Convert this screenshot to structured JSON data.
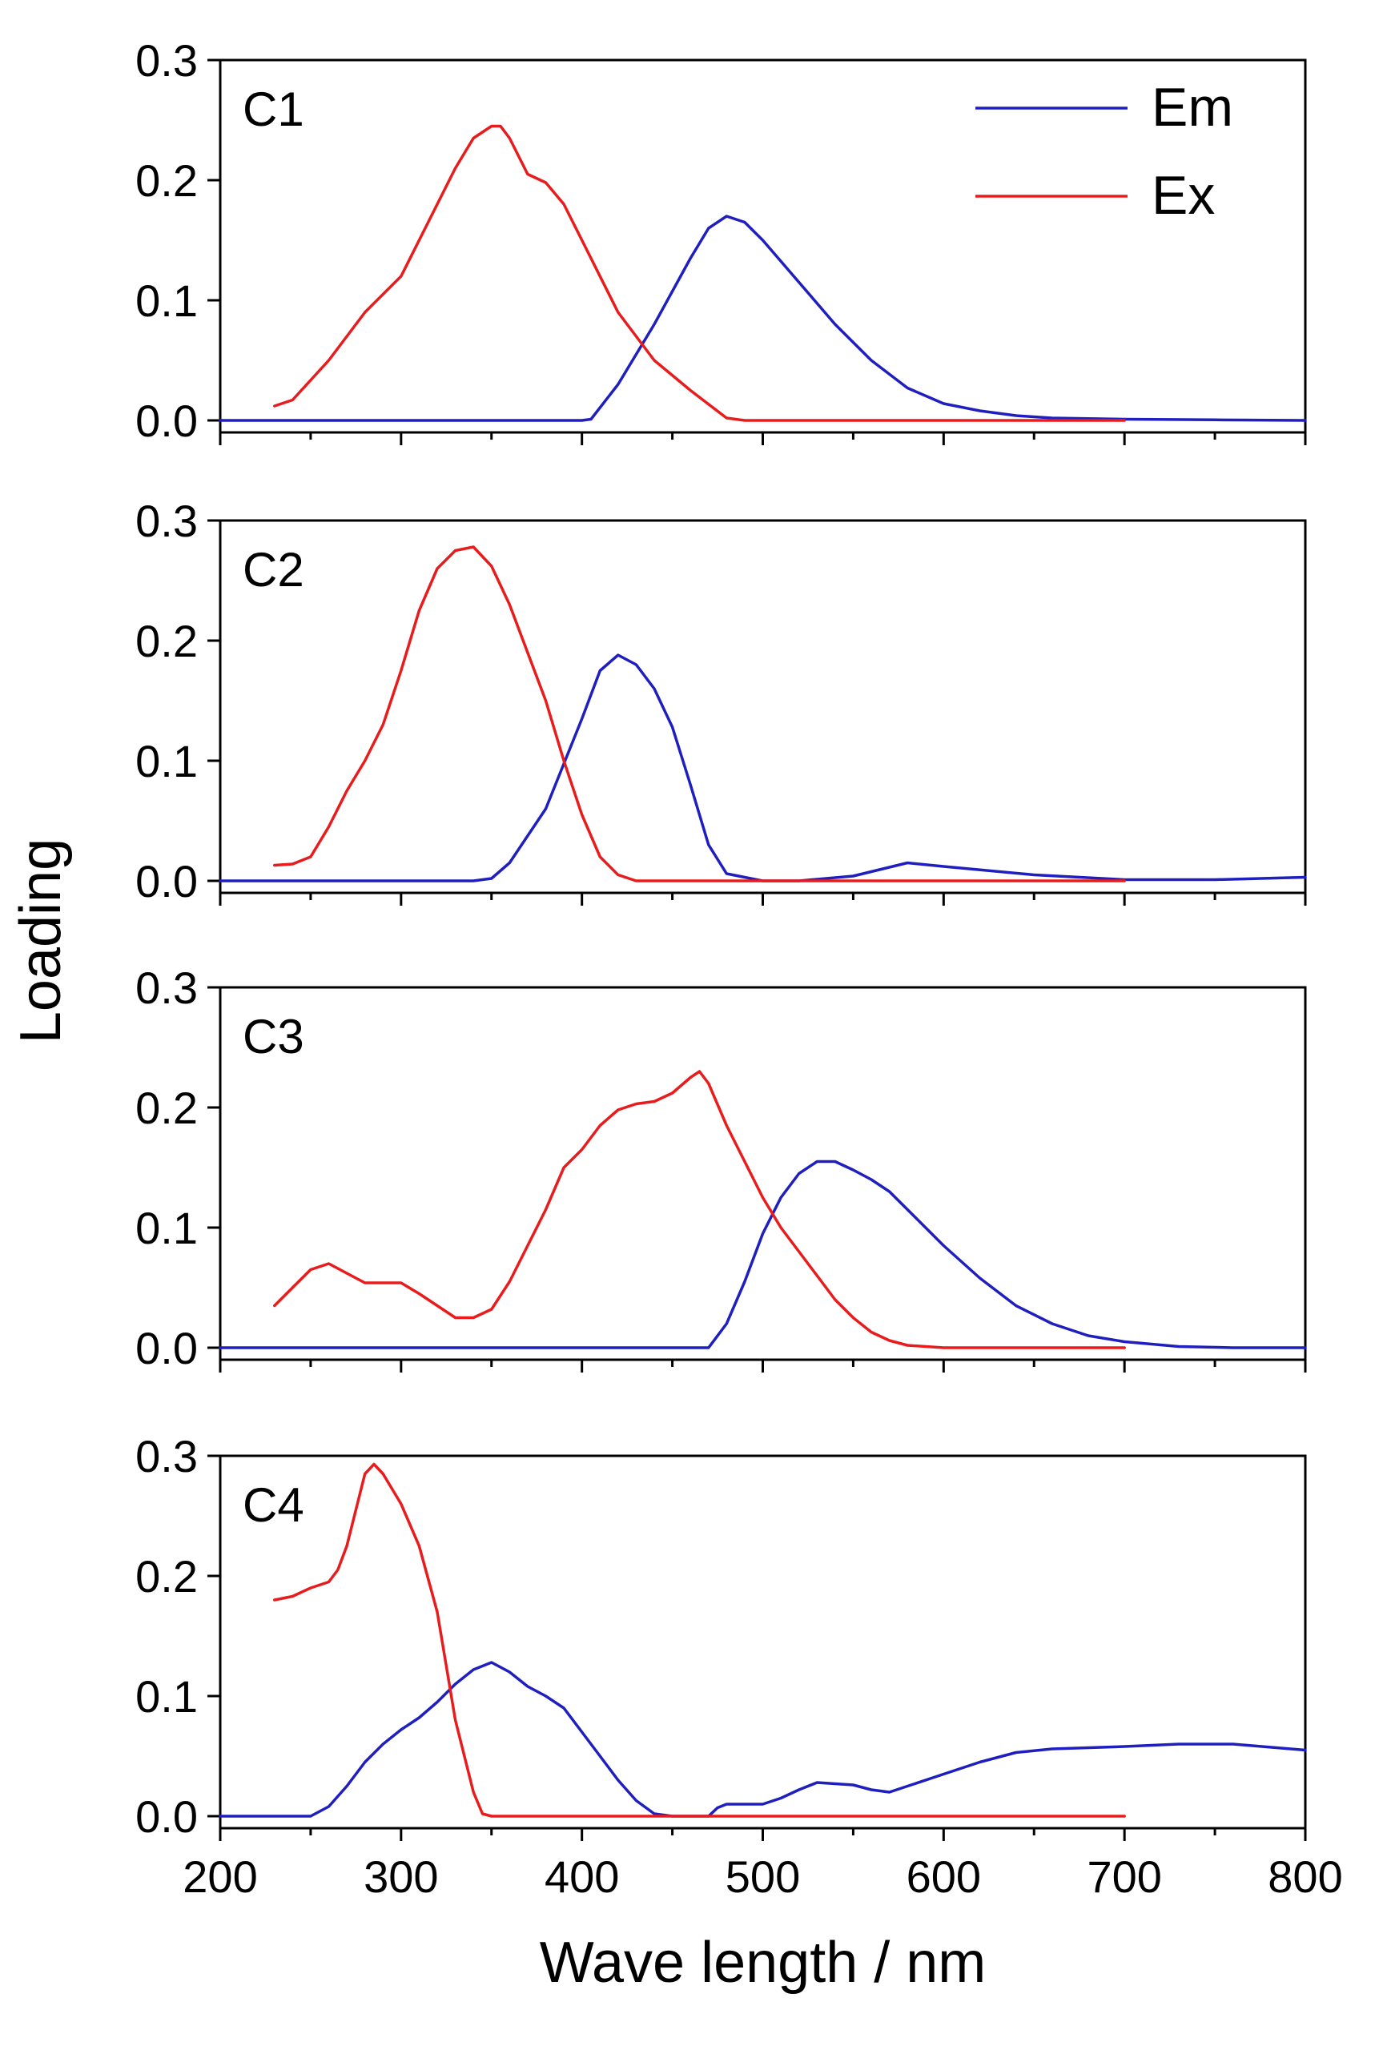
{
  "chart_data": {
    "type": "line",
    "xlabel": "Wave length / nm",
    "ylabel": "Loading",
    "xlim": [
      200,
      800
    ],
    "xticks": [
      200,
      300,
      400,
      500,
      600,
      700,
      800
    ],
    "xtick_labels": [
      "200",
      "300",
      "400",
      "500",
      "600",
      "700",
      "800"
    ],
    "ylim": [
      -0.01,
      0.3
    ],
    "yticks": [
      0.0,
      0.1,
      0.2,
      0.3
    ],
    "ytick_labels": [
      "0.0",
      "0.1",
      "0.2",
      "0.3"
    ],
    "legend": {
      "placement": "top-right of first panel",
      "entries": [
        {
          "name": "Em",
          "color": "#1f1fbf"
        },
        {
          "name": "Ex",
          "color": "#e81c1c"
        }
      ]
    },
    "colors": {
      "em": "#1f1fbf",
      "ex": "#e81c1c"
    },
    "panels": [
      {
        "label": "C1",
        "series": [
          {
            "name": "Em",
            "x": [
              200,
              250,
              300,
              350,
              400,
              405,
              420,
              440,
              460,
              470,
              480,
              490,
              500,
              520,
              540,
              560,
              580,
              600,
              620,
              640,
              660,
              700,
              750,
              800
            ],
            "y": [
              0,
              0,
              0,
              0,
              0,
              0.001,
              0.03,
              0.08,
              0.135,
              0.16,
              0.17,
              0.165,
              0.15,
              0.115,
              0.08,
              0.05,
              0.027,
              0.014,
              0.008,
              0.004,
              0.002,
              0.001,
              0.0005,
              0
            ]
          },
          {
            "name": "Ex",
            "x": [
              230,
              240,
              260,
              280,
              300,
              310,
              320,
              330,
              340,
              350,
              355,
              360,
              370,
              380,
              390,
              400,
              420,
              440,
              460,
              480,
              490,
              500,
              550,
              600,
              650,
              700
            ],
            "y": [
              0.012,
              0.017,
              0.05,
              0.09,
              0.12,
              0.15,
              0.18,
              0.21,
              0.235,
              0.245,
              0.245,
              0.235,
              0.205,
              0.198,
              0.18,
              0.15,
              0.09,
              0.05,
              0.025,
              0.002,
              0,
              0,
              0,
              0,
              0,
              0
            ]
          }
        ]
      },
      {
        "label": "C2",
        "series": [
          {
            "name": "Em",
            "x": [
              200,
              250,
              300,
              340,
              350,
              360,
              380,
              400,
              410,
              420,
              430,
              440,
              450,
              460,
              470,
              480,
              500,
              520,
              550,
              580,
              600,
              650,
              700,
              750,
              800
            ],
            "y": [
              0,
              0,
              0,
              0,
              0.002,
              0.015,
              0.06,
              0.135,
              0.175,
              0.188,
              0.18,
              0.16,
              0.128,
              0.08,
              0.03,
              0.006,
              0,
              0,
              0.004,
              0.015,
              0.012,
              0.005,
              0.001,
              0.001,
              0.003
            ]
          },
          {
            "name": "Ex",
            "x": [
              230,
              240,
              250,
              260,
              270,
              280,
              290,
              300,
              310,
              320,
              330,
              340,
              350,
              360,
              370,
              380,
              390,
              400,
              410,
              420,
              430,
              440,
              450,
              500,
              550,
              600,
              650,
              700
            ],
            "y": [
              0.013,
              0.014,
              0.02,
              0.045,
              0.075,
              0.1,
              0.13,
              0.175,
              0.225,
              0.26,
              0.275,
              0.278,
              0.262,
              0.23,
              0.19,
              0.15,
              0.1,
              0.055,
              0.02,
              0.005,
              0,
              0,
              0,
              0,
              0,
              0,
              0,
              0
            ]
          }
        ]
      },
      {
        "label": "C3",
        "series": [
          {
            "name": "Em",
            "x": [
              200,
              300,
              400,
              470,
              480,
              490,
              500,
              510,
              520,
              530,
              540,
              550,
              560,
              570,
              580,
              600,
              620,
              640,
              660,
              680,
              700,
              730,
              760,
              800
            ],
            "y": [
              0,
              0,
              0,
              0,
              0.02,
              0.055,
              0.095,
              0.125,
              0.145,
              0.155,
              0.155,
              0.148,
              0.14,
              0.13,
              0.115,
              0.085,
              0.058,
              0.035,
              0.02,
              0.01,
              0.005,
              0.001,
              0,
              0
            ]
          },
          {
            "name": "Ex",
            "x": [
              230,
              240,
              250,
              260,
              270,
              280,
              290,
              300,
              310,
              320,
              330,
              340,
              350,
              360,
              370,
              380,
              390,
              400,
              410,
              420,
              430,
              440,
              450,
              460,
              465,
              470,
              480,
              490,
              500,
              510,
              520,
              530,
              540,
              550,
              560,
              570,
              580,
              600,
              650,
              700
            ],
            "y": [
              0.035,
              0.05,
              0.065,
              0.07,
              0.062,
              0.054,
              0.054,
              0.054,
              0.045,
              0.035,
              0.025,
              0.025,
              0.032,
              0.055,
              0.085,
              0.115,
              0.15,
              0.165,
              0.185,
              0.198,
              0.203,
              0.205,
              0.212,
              0.225,
              0.23,
              0.22,
              0.185,
              0.155,
              0.125,
              0.1,
              0.08,
              0.06,
              0.04,
              0.025,
              0.013,
              0.006,
              0.002,
              0,
              0,
              0
            ]
          }
        ]
      },
      {
        "label": "C4",
        "series": [
          {
            "name": "Em",
            "x": [
              200,
              230,
              250,
              260,
              270,
              280,
              290,
              300,
              310,
              320,
              330,
              340,
              350,
              360,
              370,
              380,
              390,
              400,
              410,
              420,
              430,
              440,
              450,
              470,
              475,
              480,
              500,
              510,
              520,
              530,
              540,
              550,
              560,
              570,
              580,
              600,
              620,
              640,
              660,
              700,
              730,
              760,
              800
            ],
            "y": [
              0,
              0,
              0,
              0.008,
              0.025,
              0.045,
              0.06,
              0.072,
              0.082,
              0.095,
              0.11,
              0.122,
              0.128,
              0.12,
              0.108,
              0.1,
              0.09,
              0.07,
              0.05,
              0.03,
              0.013,
              0.002,
              0,
              0,
              0.007,
              0.01,
              0.01,
              0.015,
              0.022,
              0.028,
              0.027,
              0.026,
              0.022,
              0.02,
              0.025,
              0.035,
              0.045,
              0.053,
              0.056,
              0.058,
              0.06,
              0.06,
              0.055
            ]
          },
          {
            "name": "Ex",
            "x": [
              230,
              240,
              250,
              260,
              265,
              270,
              275,
              280,
              285,
              290,
              300,
              310,
              320,
              330,
              340,
              345,
              350,
              360,
              400,
              450,
              500,
              550,
              600,
              650,
              700
            ],
            "y": [
              0.18,
              0.183,
              0.19,
              0.195,
              0.205,
              0.225,
              0.255,
              0.285,
              0.293,
              0.285,
              0.26,
              0.225,
              0.17,
              0.08,
              0.02,
              0.002,
              0,
              0,
              0,
              0,
              0,
              0,
              0,
              0,
              0
            ]
          }
        ]
      }
    ]
  }
}
